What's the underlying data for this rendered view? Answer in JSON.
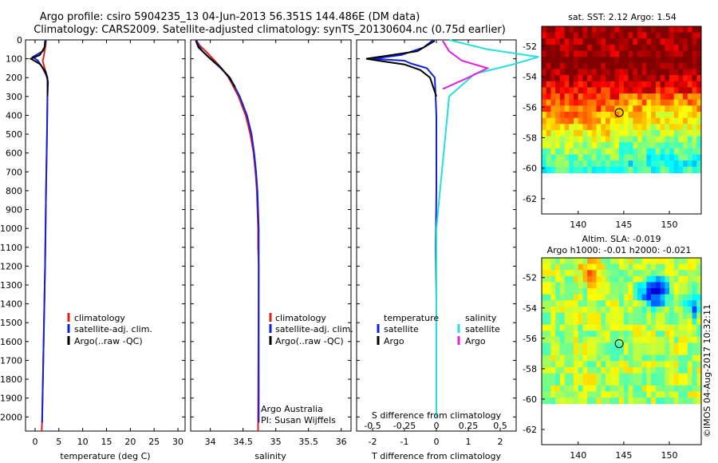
{
  "header": {
    "line1": "Argo profile: csiro 5904235_13 04-Jun-2013 56.351S 144.486E (DM data)",
    "line2": "Climatology: CARS2009. Satellite-adjusted climatology: synTS_20130604.nc (0.75d earlier)"
  },
  "colors": {
    "climatology": "#e0201a",
    "satellite": "#1020e0",
    "argo": "#000000",
    "sal_satellite": "#20e0e0",
    "sal_argo": "#e020e0"
  },
  "chart_data": [
    {
      "type": "line",
      "title": "",
      "xlabel": "temperature (deg C)",
      "ylabel": "",
      "xlim": [
        -2,
        31.5
      ],
      "ylim": [
        2075,
        0
      ],
      "reversed_y": true,
      "xticks": [
        "0",
        "5",
        "10",
        "15",
        "20",
        "25",
        "30"
      ],
      "xtick_values": [
        0,
        5,
        10,
        15,
        20,
        25,
        30
      ],
      "yticks": [
        "0",
        "100",
        "200",
        "300",
        "400",
        "500",
        "600",
        "700",
        "800",
        "900",
        "1000",
        "1100",
        "1200",
        "1300",
        "1400",
        "1500",
        "1600",
        "1700",
        "1800",
        "1900",
        "2000"
      ],
      "ytick_values": [
        0,
        100,
        200,
        300,
        400,
        500,
        600,
        700,
        800,
        900,
        1000,
        1100,
        1200,
        1300,
        1400,
        1500,
        1600,
        1700,
        1800,
        1900,
        2000
      ],
      "legend": [
        "climatology",
        "satellite-adj. clim.",
        "Argo(..raw -QC)"
      ],
      "series": [
        {
          "name": "climatology",
          "color": "#e0201a",
          "depth": [
            0,
            30,
            60,
            90,
            110,
            140,
            200,
            300,
            500,
            800,
            1200,
            1600,
            2000,
            2075
          ],
          "values": [
            2.3,
            2.2,
            2.0,
            1.8,
            1.6,
            1.9,
            2.6,
            2.6,
            2.5,
            2.3,
            2.1,
            1.8,
            1.5,
            1.4
          ]
        },
        {
          "name": "satellite-adj. clim.",
          "color": "#1020e0",
          "depth": [
            0,
            30,
            60,
            90,
            110,
            140,
            200,
            300,
            500,
            800,
            1200,
            1600,
            2000,
            2030
          ],
          "values": [
            2.2,
            2.1,
            1.6,
            -0.5,
            0.6,
            1.4,
            2.6,
            2.6,
            2.5,
            2.3,
            2.1,
            1.8,
            1.5,
            1.5
          ]
        },
        {
          "name": "Argo(..raw -QC)",
          "color": "#000000",
          "depth": [
            5,
            40,
            80,
            100,
            115,
            130,
            170,
            220,
            300
          ],
          "values": [
            2.1,
            2.0,
            1.0,
            -0.9,
            0.2,
            1.1,
            2.2,
            2.7,
            2.6
          ]
        }
      ]
    },
    {
      "type": "line",
      "title": "",
      "xlabel": "salinity",
      "ylabel": "",
      "xlim": [
        33.7,
        36.15
      ],
      "ylim": [
        2075,
        0
      ],
      "reversed_y": true,
      "xticks": [
        "34",
        "34.5",
        "35",
        "35.5",
        "36"
      ],
      "xtick_values": [
        34,
        34.5,
        35,
        35.5,
        36
      ],
      "legend": [
        "climatology",
        "satellite-adj. clim.",
        "Argo(..raw -QC)"
      ],
      "annotation": [
        "Argo Australia",
        "PI: Susan Wijffels"
      ],
      "series": [
        {
          "name": "climatology",
          "color": "#e0201a",
          "depth": [
            0,
            30,
            60,
            100,
            150,
            200,
            300,
            400,
            500,
            600,
            700,
            800,
            900,
            1000,
            1100,
            1200,
            2075
          ],
          "values": [
            33.78,
            33.84,
            33.93,
            34.04,
            34.17,
            34.28,
            34.43,
            34.54,
            34.61,
            34.66,
            34.69,
            34.71,
            34.72,
            34.73,
            34.73,
            34.74,
            34.73
          ]
        },
        {
          "name": "satellite-adj. clim.",
          "color": "#1020e0",
          "depth": [
            0,
            30,
            60,
            100,
            150,
            200,
            300,
            400,
            500,
            600,
            700,
            800,
            900,
            1000,
            1100,
            1200,
            2030
          ],
          "values": [
            33.78,
            33.82,
            33.88,
            34.0,
            34.16,
            34.3,
            34.45,
            34.56,
            34.63,
            34.67,
            34.7,
            34.72,
            34.73,
            34.74,
            34.74,
            34.74,
            34.74
          ]
        },
        {
          "name": "Argo(..raw -QC)",
          "color": "#000000",
          "depth": [
            5,
            40,
            90,
            140,
            190,
            250
          ],
          "values": [
            33.78,
            33.82,
            33.97,
            34.14,
            34.27,
            34.38
          ]
        }
      ]
    },
    {
      "type": "line",
      "title": "",
      "xlabel": "T difference from climatology",
      "xlabel_top": "S difference from climatology",
      "xlim": [
        -2.5,
        2.5
      ],
      "ylim": [
        2075,
        0
      ],
      "reversed_y": true,
      "xticks": [
        "-2",
        "-1",
        "0",
        "1",
        "2"
      ],
      "xtick_values": [
        -2,
        -1,
        0,
        1,
        2
      ],
      "top_ticks": [
        "-0.5",
        "-0.25",
        "0",
        "0.25",
        "0.5"
      ],
      "top_tick_values": [
        -0.5,
        -0.25,
        0,
        0.25,
        0.5
      ],
      "legend_left_title": "temperature",
      "legend_right_title": "salinity",
      "legend_left": [
        "satellite",
        "Argo"
      ],
      "legend_right": [
        "satellite",
        "Argo"
      ],
      "series": [
        {
          "name": "temperature satellite",
          "color": "#1020e0",
          "depth": [
            0,
            40,
            80,
            100,
            110,
            125,
            150,
            200,
            400,
            800,
            1100,
            1400,
            2000
          ],
          "values": [
            -0.1,
            -0.4,
            -1.1,
            -2.0,
            -1.0,
            -0.8,
            -0.3,
            -0.05,
            0.0,
            0.0,
            -0.02,
            0.0,
            0.0
          ]
        },
        {
          "name": "temperature Argo",
          "color": "#000000",
          "depth": [
            5,
            60,
            100,
            115,
            130,
            160,
            200,
            250,
            300
          ],
          "values": [
            -0.05,
            -0.6,
            -2.2,
            -1.6,
            -1.0,
            -0.5,
            -0.2,
            -0.1,
            0.0
          ]
        },
        {
          "name": "salinity satellite",
          "color": "#20e0e0",
          "depth": [
            0,
            50,
            90,
            130,
            180,
            300,
            1000,
            2000
          ],
          "values": [
            0.1,
            0.4,
            0.8,
            0.6,
            0.3,
            0.1,
            0.0,
            0.0
          ]
        },
        {
          "name": "salinity Argo",
          "color": "#e020e0",
          "depth": [
            5,
            60,
            110,
            150,
            200,
            260
          ],
          "values": [
            0.05,
            0.1,
            0.2,
            0.4,
            0.25,
            0.05
          ]
        }
      ]
    },
    {
      "type": "heatmap",
      "title": "sat. SST: 2.12  Argo: 1.54",
      "xticks": [
        "140",
        "145",
        "150"
      ],
      "xtick_values": [
        140,
        145,
        150
      ],
      "yticks": [
        "-52",
        "-54",
        "-56",
        "-58",
        "-60",
        "-62"
      ],
      "ytick_values": [
        -52,
        -54,
        -56,
        -58,
        -60,
        -62
      ],
      "xlim": [
        136,
        153.5
      ],
      "ylim": [
        -63,
        -50.7
      ],
      "marker": {
        "lon": 144.5,
        "lat": -56.35
      }
    },
    {
      "type": "heatmap",
      "title": "Altim. SLA: -0.019",
      "subtitle": "Argo h1000: -0.01 h2000: -0.021",
      "xticks": [
        "140",
        "145",
        "150"
      ],
      "xtick_values": [
        140,
        145,
        150
      ],
      "yticks": [
        "-52",
        "-54",
        "-56",
        "-58",
        "-60",
        "-62"
      ],
      "ytick_values": [
        -52,
        -54,
        -56,
        -58,
        -60,
        -62
      ],
      "xlim": [
        136,
        153.5
      ],
      "ylim": [
        -63,
        -50.7
      ],
      "marker": {
        "lon": 144.5,
        "lat": -56.35
      }
    }
  ],
  "footer": {
    "stamp": "©IMOS 04-Aug-2017 10:32:11"
  }
}
